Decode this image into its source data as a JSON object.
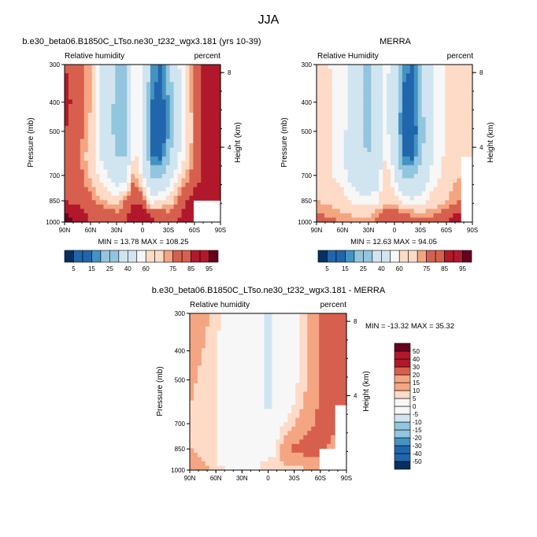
{
  "figure": {
    "title": "JJA",
    "colors": [
      "#053061",
      "#2166ac",
      "#4393c3",
      "#92c5de",
      "#d1e5f0",
      "#f7f7f7",
      "#fddbc7",
      "#f4a582",
      "#d6604d",
      "#b2182b",
      "#67001f"
    ]
  },
  "panels": [
    {
      "title": "b.e30_beta06.B1850C_LTso.ne30_t232_wgx3.181 (yrs 10-39)",
      "left_label": "Relative humidity",
      "right_label": "percent",
      "ylabel": "Pressure (mb)",
      "y2label": "Height (km)",
      "stats": "MIN = 13.78  MAX = 108.25"
    },
    {
      "title": "MERRA",
      "left_label": "Relative Humidity",
      "right_label": "percent",
      "ylabel": "Pressure (mb)",
      "y2label": "Height (km)",
      "stats": "MIN = 12.63  MAX = 94.05"
    },
    {
      "title": "b.e30_beta06.B1850C_LTso.ne30_t232_wgx3.181 - MERRA",
      "left_label": "Relative humidity",
      "right_label": "percent",
      "ylabel": "Pressure (mb)",
      "y2label": "Height (km)",
      "stats": "MIN = -13.32  MAX =  35.32"
    }
  ],
  "chart_data": [
    {
      "type": "heatmap",
      "title": "b.e30_beta06.B1850C_LTso.ne30_t232_wgx3.181 (yrs 10-39)",
      "ylabel": "Pressure (mb)",
      "y2label": "Height (km)",
      "x_ticks": [
        "90N",
        "60N",
        "30N",
        "0",
        "30S",
        "60S",
        "90S"
      ],
      "x_values": [
        90,
        60,
        30,
        0,
        -30,
        -60,
        -90
      ],
      "y_ticks": [
        300,
        400,
        500,
        700,
        850,
        1000
      ],
      "y_scale": "log",
      "ylim": [
        1000,
        300
      ],
      "y2_ticks": [
        8,
        4
      ],
      "stats": "MIN = 13.78  MAX = 108.25",
      "colorbar": {
        "levels": [
          5,
          10,
          15,
          20,
          25,
          30,
          40,
          50,
          60,
          65,
          70,
          75,
          80,
          85,
          90,
          95
        ],
        "labels": [
          "5",
          "15",
          "25",
          "40",
          "60",
          "75",
          "85",
          "95"
        ]
      },
      "field": {
        "lat": [
          90,
          75,
          60,
          45,
          30,
          20,
          10,
          0,
          -10,
          -20,
          -30,
          -45,
          -60,
          -75,
          -90
        ],
        "pressure": [
          300,
          400,
          500,
          600,
          700,
          850,
          925,
          1000
        ],
        "values": [
          [
            85,
            80,
            70,
            45,
            25,
            30,
            55,
            55,
            20,
            15,
            25,
            55,
            80,
            90,
            92
          ],
          [
            88,
            82,
            70,
            45,
            25,
            28,
            55,
            55,
            15,
            10,
            20,
            50,
            78,
            92,
            95
          ],
          [
            85,
            80,
            68,
            42,
            25,
            28,
            55,
            55,
            12,
            8,
            18,
            48,
            75,
            92,
            95
          ],
          [
            80,
            78,
            65,
            45,
            30,
            30,
            60,
            55,
            15,
            12,
            25,
            55,
            78,
            90,
            95
          ],
          [
            82,
            80,
            68,
            55,
            38,
            40,
            75,
            55,
            25,
            25,
            40,
            65,
            80,
            90,
            95
          ],
          [
            85,
            82,
            78,
            70,
            65,
            75,
            85,
            80,
            55,
            60,
            65,
            80,
            90,
            90,
            95
          ],
          [
            95,
            90,
            82,
            78,
            75,
            80,
            90,
            90,
            80,
            78,
            75,
            85,
            92,
            null,
            null
          ],
          [
            100,
            92,
            85,
            85,
            80,
            85,
            92,
            92,
            88,
            85,
            82,
            88,
            92,
            null,
            null
          ]
        ]
      }
    },
    {
      "type": "heatmap",
      "title": "MERRA",
      "ylabel": "Pressure (mb)",
      "y2label": "Height (km)",
      "x_ticks": [
        "90N",
        "60N",
        "30N",
        "0",
        "30S",
        "60S",
        "90S"
      ],
      "x_values": [
        90,
        60,
        30,
        0,
        -30,
        -60,
        -90
      ],
      "y_ticks": [
        300,
        400,
        500,
        700,
        850,
        1000
      ],
      "y_scale": "log",
      "ylim": [
        1000,
        300
      ],
      "y2_ticks": [
        8,
        4
      ],
      "stats": "MIN = 12.63  MAX = 94.05",
      "colorbar": {
        "levels": [
          5,
          10,
          15,
          20,
          25,
          30,
          40,
          50,
          60,
          65,
          70,
          75,
          80,
          85,
          90,
          95
        ],
        "labels": [
          "5",
          "15",
          "25",
          "40",
          "60",
          "75",
          "85",
          "95"
        ]
      },
      "field": {
        "lat": [
          90,
          75,
          60,
          45,
          30,
          20,
          10,
          0,
          -10,
          -20,
          -30,
          -45,
          -60,
          -75,
          -90
        ],
        "pressure": [
          300,
          400,
          500,
          600,
          700,
          850,
          925,
          1000
        ],
        "values": [
          [
            65,
            60,
            55,
            35,
            25,
            35,
            55,
            40,
            18,
            15,
            25,
            50,
            62,
            65,
            65
          ],
          [
            65,
            62,
            55,
            35,
            25,
            35,
            55,
            38,
            12,
            10,
            25,
            50,
            62,
            65,
            65
          ],
          [
            65,
            62,
            55,
            35,
            25,
            35,
            55,
            38,
            10,
            8,
            22,
            48,
            62,
            65,
            65
          ],
          [
            65,
            62,
            52,
            35,
            30,
            35,
            60,
            42,
            15,
            12,
            25,
            52,
            62,
            65,
            65
          ],
          [
            65,
            62,
            55,
            40,
            35,
            40,
            70,
            48,
            25,
            25,
            35,
            55,
            65,
            70,
            null
          ],
          [
            70,
            68,
            65,
            55,
            52,
            58,
            70,
            65,
            55,
            52,
            55,
            65,
            70,
            75,
            null
          ],
          [
            75,
            72,
            70,
            68,
            68,
            72,
            80,
            78,
            75,
            72,
            70,
            72,
            78,
            85,
            null
          ],
          [
            80,
            78,
            75,
            72,
            72,
            78,
            85,
            82,
            82,
            80,
            78,
            80,
            85,
            92,
            null
          ]
        ]
      }
    },
    {
      "type": "heatmap",
      "title": "b.e30_beta06.B1850C_LTso.ne30_t232_wgx3.181 - MERRA",
      "ylabel": "Pressure (mb)",
      "y2label": "Height (km)",
      "x_ticks": [
        "90N",
        "60N",
        "30N",
        "0",
        "30S",
        "60S",
        "90S"
      ],
      "x_values": [
        90,
        60,
        30,
        0,
        -30,
        -60,
        -90
      ],
      "y_ticks": [
        300,
        400,
        500,
        700,
        850,
        1000
      ],
      "y_scale": "log",
      "ylim": [
        1000,
        300
      ],
      "y2_ticks": [
        8,
        4
      ],
      "stats": "MIN = -13.32  MAX =  35.32",
      "colorbar": {
        "levels": [
          -50,
          -40,
          -30,
          -20,
          -15,
          -10,
          -5,
          0,
          5,
          10,
          15,
          20,
          30,
          40,
          50
        ],
        "labels": [
          "-50",
          "-40",
          "-30",
          "-20",
          "-15",
          "-10",
          "-5",
          "0",
          "5",
          "10",
          "15",
          "20",
          "30",
          "40",
          "50"
        ]
      },
      "field": {
        "lat": [
          90,
          75,
          60,
          45,
          30,
          20,
          10,
          0,
          -10,
          -20,
          -30,
          -45,
          -60,
          -75,
          -90
        ],
        "pressure": [
          300,
          400,
          500,
          600,
          700,
          850,
          925,
          1000
        ],
        "values": [
          [
            20,
            12,
            8,
            0,
            -3,
            -3,
            2,
            -8,
            2,
            2,
            3,
            10,
            22,
            25,
            28
          ],
          [
            15,
            10,
            6,
            -2,
            -3,
            -3,
            3,
            -10,
            2,
            2,
            3,
            10,
            22,
            25,
            28
          ],
          [
            12,
            8,
            5,
            -2,
            -3,
            -3,
            3,
            -10,
            2,
            2,
            3,
            10,
            22,
            25,
            28
          ],
          [
            10,
            8,
            5,
            -2,
            -3,
            -3,
            3,
            -8,
            2,
            2,
            5,
            12,
            22,
            25,
            28
          ],
          [
            10,
            8,
            5,
            -2,
            -3,
            -2,
            3,
            -5,
            3,
            5,
            10,
            18,
            22,
            22,
            null
          ],
          [
            10,
            8,
            5,
            -2,
            -3,
            2,
            5,
            -3,
            5,
            15,
            22,
            25,
            22,
            18,
            null
          ],
          [
            15,
            10,
            5,
            0,
            0,
            3,
            5,
            5,
            8,
            12,
            15,
            18,
            18,
            null,
            null
          ],
          [
            18,
            12,
            8,
            5,
            3,
            5,
            5,
            8,
            8,
            8,
            8,
            8,
            10,
            null,
            null
          ]
        ]
      }
    }
  ]
}
